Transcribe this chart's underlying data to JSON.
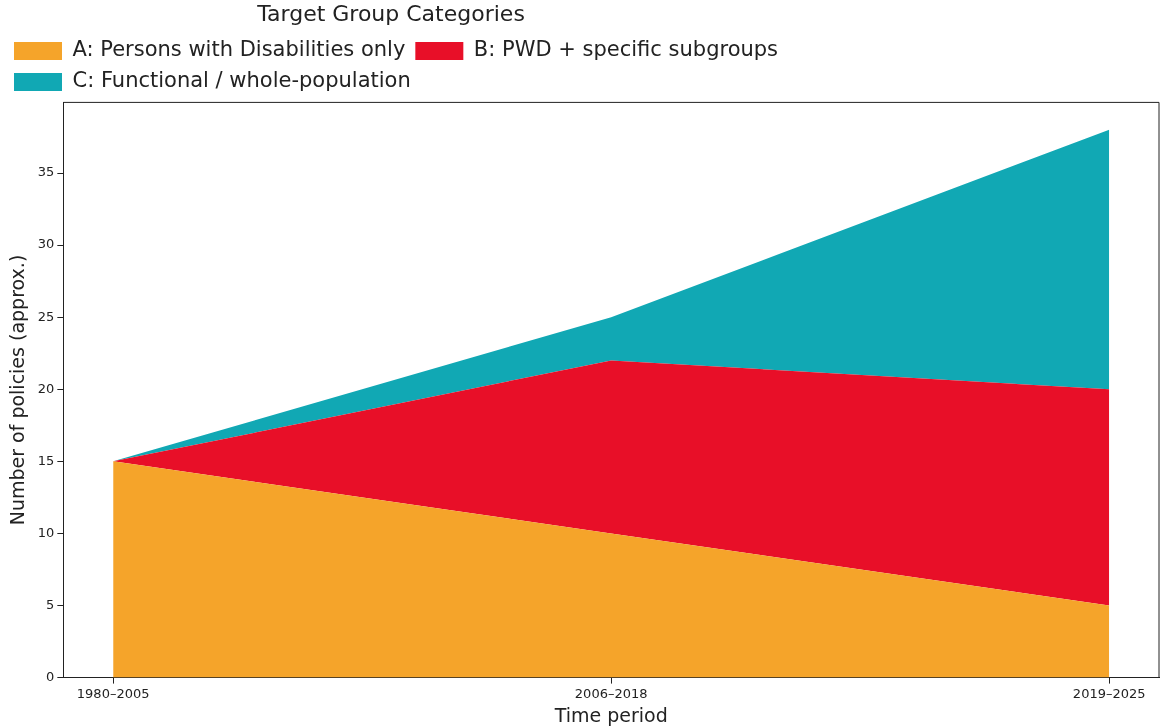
{
  "chart_data": {
    "type": "area",
    "stacked": true,
    "xlabel": "Time period",
    "ylabel": "Number of policies (approx.)",
    "legend_title": "Target Group Categories",
    "legend": "top left",
    "grid": false,
    "marker": "none",
    "categories": [
      "1980–2005",
      "2006–2018",
      "2019–2025"
    ],
    "ylim": [
      0,
      39.9
    ],
    "yticks": [
      0,
      5,
      10,
      15,
      20,
      25,
      30,
      35
    ],
    "series": [
      {
        "name": "A: Persons with Disabilities only",
        "color": "#f5a42a",
        "values": [
          15,
          10,
          5
        ]
      },
      {
        "name": "B: PWD + specific subgroups",
        "color": "#e80f28",
        "values": [
          0,
          12,
          15
        ]
      },
      {
        "name": "C: Functional / whole-population",
        "color": "#11a8b4",
        "values": [
          0,
          3,
          18
        ]
      }
    ]
  }
}
